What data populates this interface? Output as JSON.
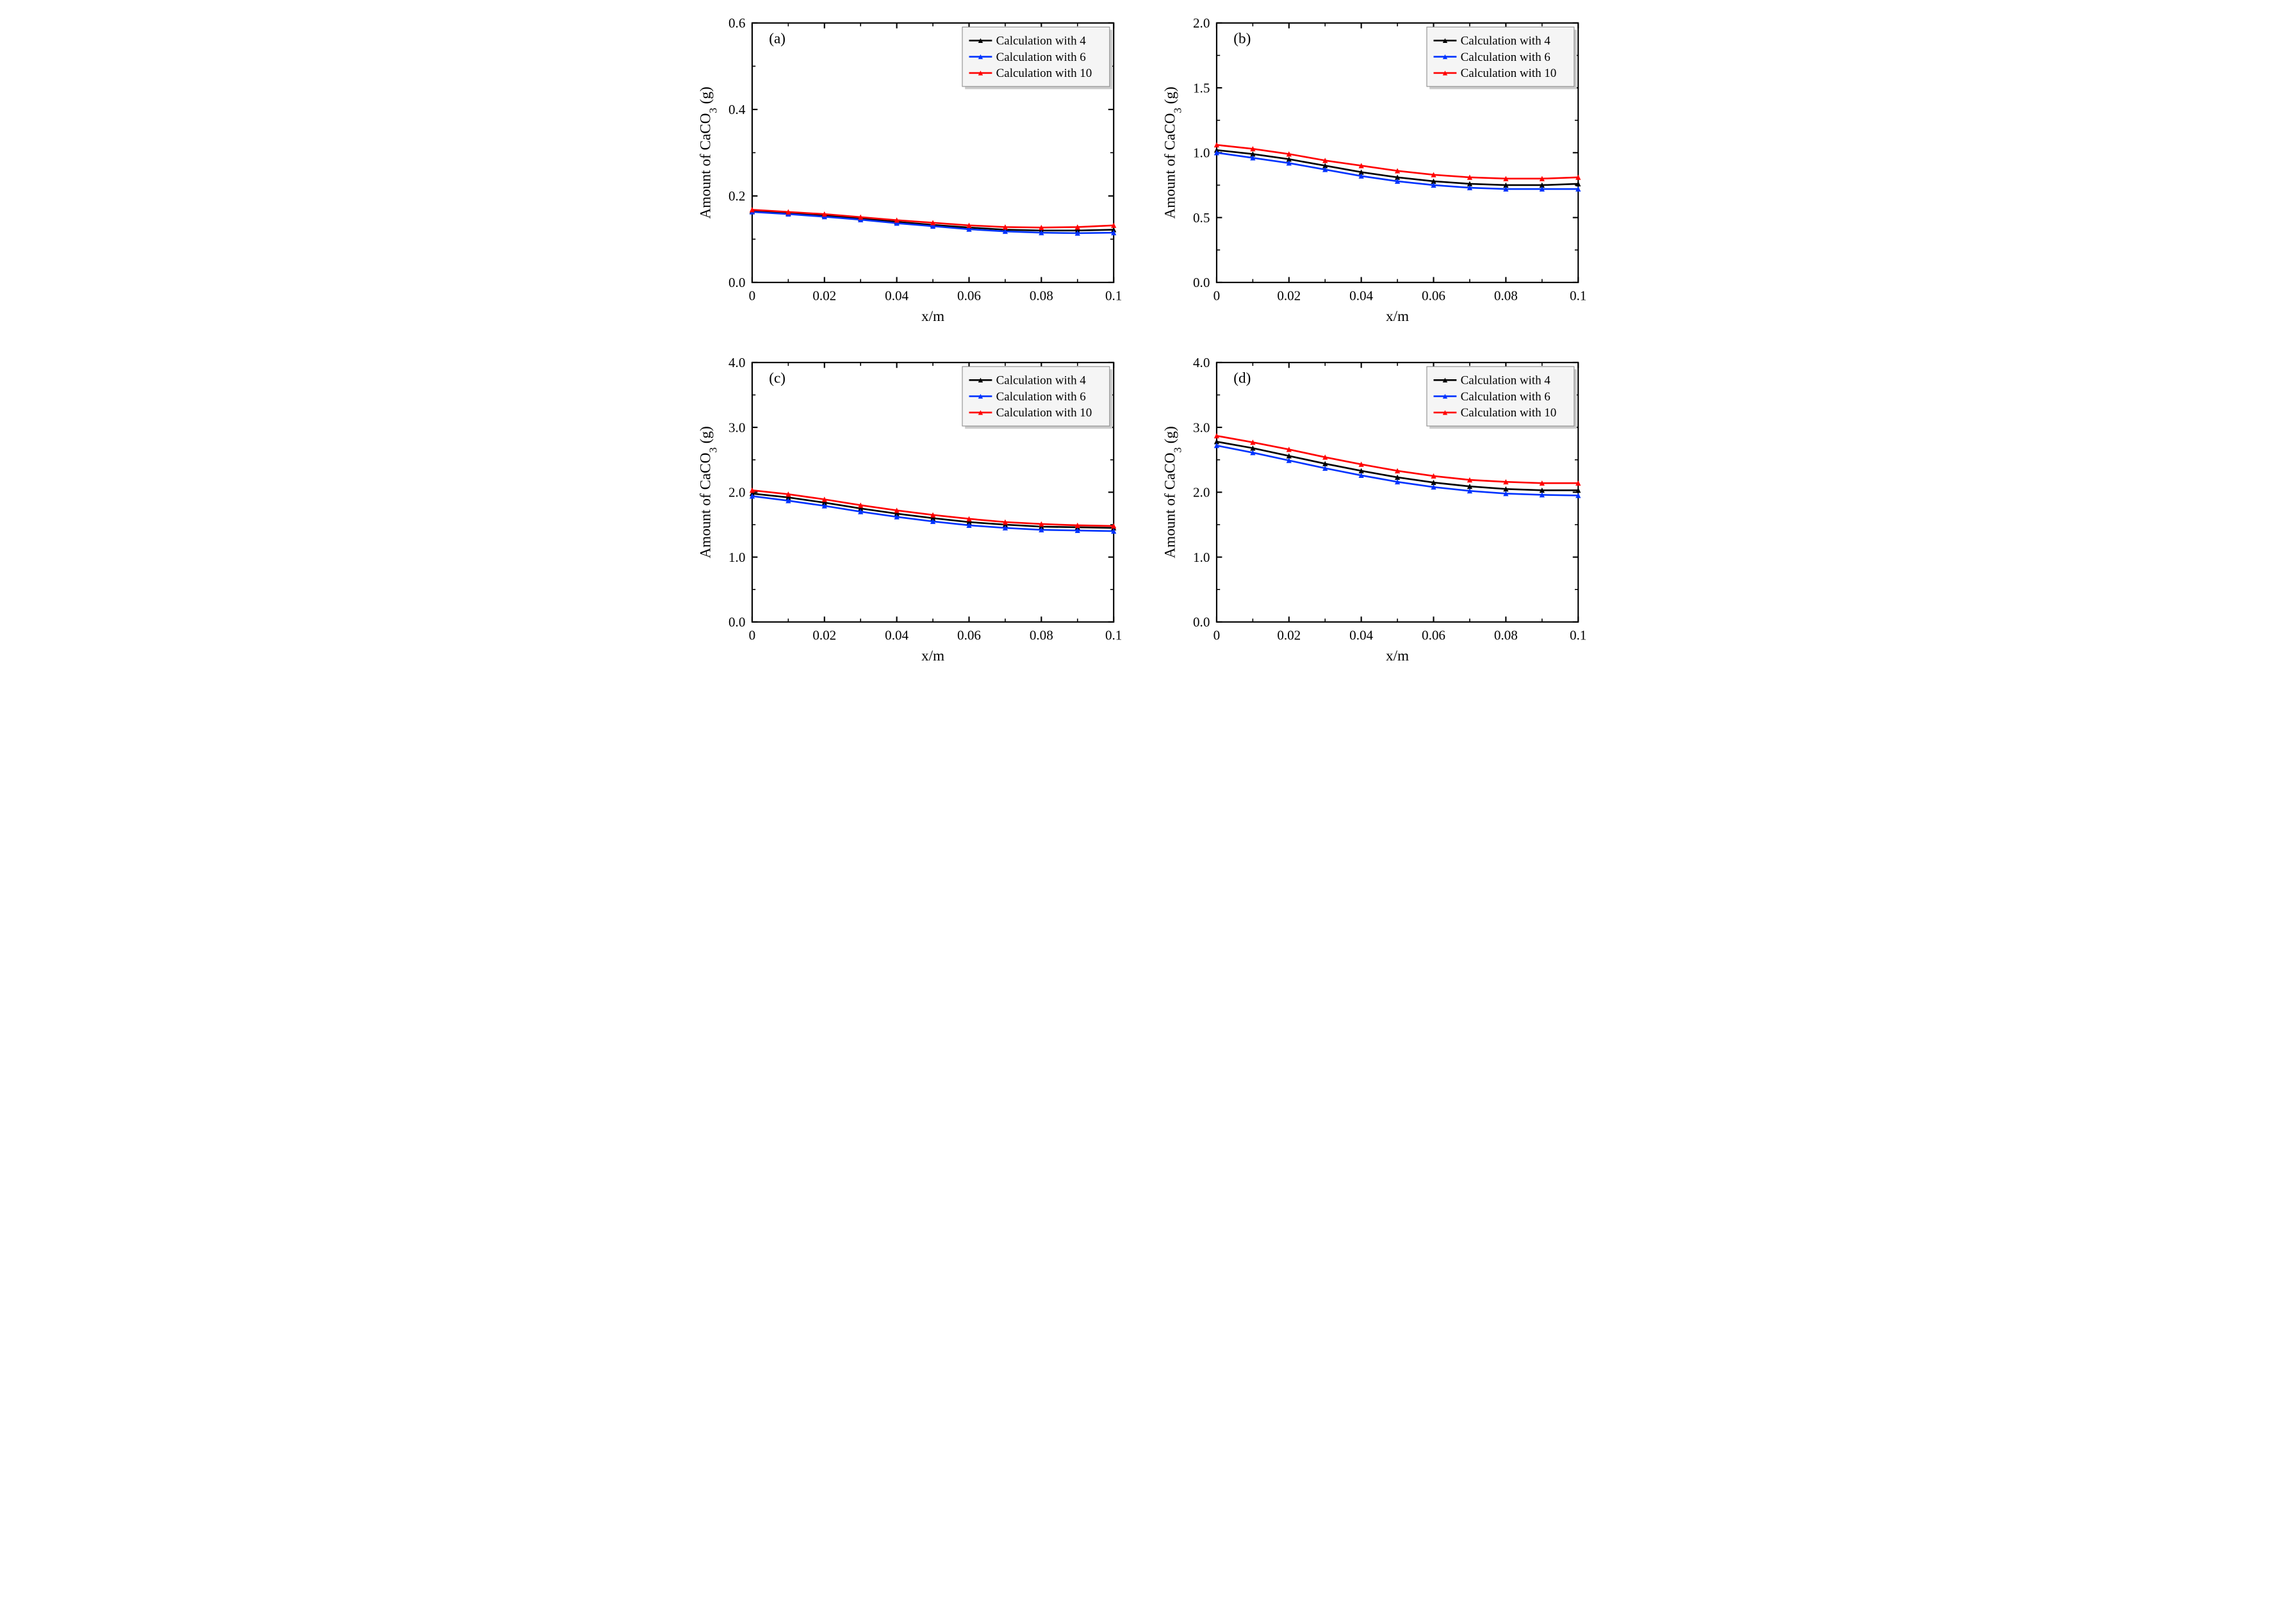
{
  "figure": {
    "background_color": "#ffffff",
    "font_family": "Times New Roman",
    "panels": [
      {
        "key": "a",
        "label": "(a)",
        "xlabel": "x/m",
        "ylabel": "Amount of CaCO₃ (g)",
        "xlim": [
          0,
          0.1
        ],
        "ylim": [
          0,
          0.6
        ],
        "xticks": [
          0,
          0.02,
          0.04,
          0.06,
          0.08,
          0.1
        ],
        "yticks": [
          0.0,
          0.2,
          0.4,
          0.6
        ],
        "xtick_labels": [
          "0",
          "0.02",
          "0.04",
          "0.06",
          "0.08",
          "0.1"
        ],
        "ytick_labels": [
          "0.0",
          "0.2",
          "0.4",
          "0.6"
        ],
        "x_minor_between": 1,
        "y_minor_between": 1,
        "series": [
          {
            "name": "Calculation with 4",
            "color": "#000000",
            "linewidth": 2.5,
            "marker": "triangle",
            "x": [
              0,
              0.01,
              0.02,
              0.03,
              0.04,
              0.05,
              0.06,
              0.07,
              0.08,
              0.09,
              0.1
            ],
            "y": [
              0.165,
              0.16,
              0.155,
              0.148,
              0.14,
              0.133,
              0.127,
              0.122,
              0.12,
              0.12,
              0.122
            ]
          },
          {
            "name": "Calculation with 6",
            "color": "#0033ff",
            "linewidth": 2.5,
            "marker": "triangle",
            "x": [
              0,
              0.01,
              0.02,
              0.03,
              0.04,
              0.05,
              0.06,
              0.07,
              0.08,
              0.09,
              0.1
            ],
            "y": [
              0.163,
              0.158,
              0.152,
              0.145,
              0.137,
              0.13,
              0.123,
              0.118,
              0.115,
              0.114,
              0.115
            ]
          },
          {
            "name": "Calculation with 10",
            "color": "#ff0000",
            "linewidth": 2.5,
            "marker": "triangle",
            "x": [
              0,
              0.01,
              0.02,
              0.03,
              0.04,
              0.05,
              0.06,
              0.07,
              0.08,
              0.09,
              0.1
            ],
            "y": [
              0.168,
              0.163,
              0.158,
              0.151,
              0.144,
              0.138,
              0.132,
              0.128,
              0.127,
              0.128,
              0.132
            ]
          }
        ]
      },
      {
        "key": "b",
        "label": "(b)",
        "xlabel": "x/m",
        "ylabel": "Amount of CaCO₃ (g)",
        "xlim": [
          0,
          0.1
        ],
        "ylim": [
          0,
          2.0
        ],
        "xticks": [
          0,
          0.02,
          0.04,
          0.06,
          0.08,
          0.1
        ],
        "yticks": [
          0.0,
          0.5,
          1.0,
          1.5,
          2.0
        ],
        "xtick_labels": [
          "0",
          "0.02",
          "0.04",
          "0.06",
          "0.08",
          "0.1"
        ],
        "ytick_labels": [
          "0.0",
          "0.5",
          "1.0",
          "1.5",
          "2.0"
        ],
        "x_minor_between": 1,
        "y_minor_between": 1,
        "series": [
          {
            "name": "Calculation with 4",
            "color": "#000000",
            "linewidth": 2.5,
            "marker": "triangle",
            "x": [
              0,
              0.01,
              0.02,
              0.03,
              0.04,
              0.05,
              0.06,
              0.07,
              0.08,
              0.09,
              0.1
            ],
            "y": [
              1.02,
              0.99,
              0.95,
              0.9,
              0.85,
              0.81,
              0.78,
              0.76,
              0.75,
              0.75,
              0.76
            ]
          },
          {
            "name": "Calculation with 6",
            "color": "#0033ff",
            "linewidth": 2.5,
            "marker": "triangle",
            "x": [
              0,
              0.01,
              0.02,
              0.03,
              0.04,
              0.05,
              0.06,
              0.07,
              0.08,
              0.09,
              0.1
            ],
            "y": [
              1.0,
              0.96,
              0.92,
              0.87,
              0.82,
              0.78,
              0.75,
              0.73,
              0.72,
              0.72,
              0.72
            ]
          },
          {
            "name": "Calculation with 10",
            "color": "#ff0000",
            "linewidth": 2.5,
            "marker": "triangle",
            "x": [
              0,
              0.01,
              0.02,
              0.03,
              0.04,
              0.05,
              0.06,
              0.07,
              0.08,
              0.09,
              0.1
            ],
            "y": [
              1.06,
              1.03,
              0.99,
              0.94,
              0.9,
              0.86,
              0.83,
              0.81,
              0.8,
              0.8,
              0.81
            ]
          }
        ]
      },
      {
        "key": "c",
        "label": "(c)",
        "xlabel": "x/m",
        "ylabel": "Amount of CaCO₃ (g)",
        "xlim": [
          0,
          0.1
        ],
        "ylim": [
          0,
          4.0
        ],
        "xticks": [
          0,
          0.02,
          0.04,
          0.06,
          0.08,
          0.1
        ],
        "yticks": [
          0.0,
          1.0,
          2.0,
          3.0,
          4.0
        ],
        "xtick_labels": [
          "0",
          "0.02",
          "0.04",
          "0.06",
          "0.08",
          "0.1"
        ],
        "ytick_labels": [
          "0.0",
          "1.0",
          "2.0",
          "3.0",
          "4.0"
        ],
        "x_minor_between": 1,
        "y_minor_between": 1,
        "series": [
          {
            "name": "Calculation with 4",
            "color": "#000000",
            "linewidth": 2.5,
            "marker": "triangle",
            "x": [
              0,
              0.01,
              0.02,
              0.03,
              0.04,
              0.05,
              0.06,
              0.07,
              0.08,
              0.09,
              0.1
            ],
            "y": [
              1.98,
              1.92,
              1.84,
              1.75,
              1.67,
              1.6,
              1.54,
              1.5,
              1.47,
              1.46,
              1.45
            ]
          },
          {
            "name": "Calculation with 6",
            "color": "#0033ff",
            "linewidth": 2.5,
            "marker": "triangle",
            "x": [
              0,
              0.01,
              0.02,
              0.03,
              0.04,
              0.05,
              0.06,
              0.07,
              0.08,
              0.09,
              0.1
            ],
            "y": [
              1.94,
              1.87,
              1.79,
              1.7,
              1.62,
              1.55,
              1.49,
              1.45,
              1.42,
              1.41,
              1.4
            ]
          },
          {
            "name": "Calculation with 10",
            "color": "#ff0000",
            "linewidth": 2.5,
            "marker": "triangle",
            "x": [
              0,
              0.01,
              0.02,
              0.03,
              0.04,
              0.05,
              0.06,
              0.07,
              0.08,
              0.09,
              0.1
            ],
            "y": [
              2.03,
              1.97,
              1.89,
              1.8,
              1.72,
              1.65,
              1.59,
              1.54,
              1.51,
              1.49,
              1.48
            ]
          }
        ]
      },
      {
        "key": "d",
        "label": "(d)",
        "xlabel": "x/m",
        "ylabel": "Amount of CaCO₃ (g)",
        "xlim": [
          0,
          0.1
        ],
        "ylim": [
          0,
          4.0
        ],
        "xticks": [
          0,
          0.02,
          0.04,
          0.06,
          0.08,
          0.1
        ],
        "yticks": [
          0.0,
          1.0,
          2.0,
          3.0,
          4.0
        ],
        "xtick_labels": [
          "0",
          "0.02",
          "0.04",
          "0.06",
          "0.08",
          "0.1"
        ],
        "ytick_labels": [
          "0.0",
          "1.0",
          "2.0",
          "3.0",
          "4.0"
        ],
        "x_minor_between": 1,
        "y_minor_between": 1,
        "series": [
          {
            "name": "Calculation with 4",
            "color": "#000000",
            "linewidth": 2.5,
            "marker": "triangle",
            "x": [
              0,
              0.01,
              0.02,
              0.03,
              0.04,
              0.05,
              0.06,
              0.07,
              0.08,
              0.09,
              0.1
            ],
            "y": [
              2.78,
              2.68,
              2.56,
              2.44,
              2.33,
              2.23,
              2.15,
              2.09,
              2.05,
              2.03,
              2.03
            ]
          },
          {
            "name": "Calculation with 6",
            "color": "#0033ff",
            "linewidth": 2.5,
            "marker": "triangle",
            "x": [
              0,
              0.01,
              0.02,
              0.03,
              0.04,
              0.05,
              0.06,
              0.07,
              0.08,
              0.09,
              0.1
            ],
            "y": [
              2.72,
              2.61,
              2.49,
              2.37,
              2.26,
              2.16,
              2.08,
              2.02,
              1.98,
              1.96,
              1.95
            ]
          },
          {
            "name": "Calculation with 10",
            "color": "#ff0000",
            "linewidth": 2.5,
            "marker": "triangle",
            "x": [
              0,
              0.01,
              0.02,
              0.03,
              0.04,
              0.05,
              0.06,
              0.07,
              0.08,
              0.09,
              0.1
            ],
            "y": [
              2.87,
              2.77,
              2.66,
              2.54,
              2.43,
              2.33,
              2.25,
              2.19,
              2.16,
              2.14,
              2.14
            ]
          }
        ]
      }
    ],
    "legend": {
      "position": "upper-right",
      "entries": [
        {
          "label": "Calculation with 4",
          "color": "#000000"
        },
        {
          "label": "Calculation with 6",
          "color": "#0033ff"
        },
        {
          "label": "Calculation with 10",
          "color": "#ff0000"
        }
      ],
      "box_fill": "#f5f5f5",
      "box_stroke": "#888888",
      "shadow": "#cccccc",
      "fontsize": 18
    },
    "panel_label_fontsize": 22,
    "axis_title_fontsize": 22,
    "tick_label_fontsize": 20,
    "tick_length_major": 8,
    "tick_length_minor": 5
  }
}
